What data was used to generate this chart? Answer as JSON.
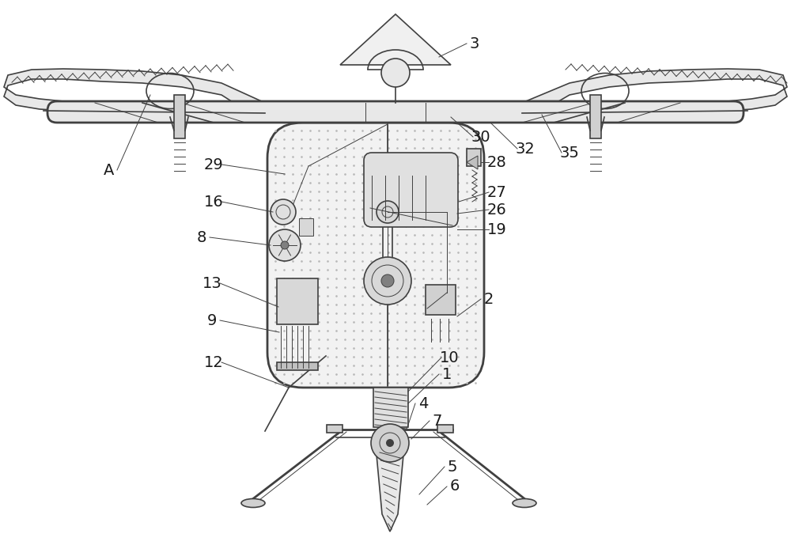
{
  "bg_color": "#ffffff",
  "line_color": "#404040",
  "light_line": "#808080",
  "fill_dot": "#d0d0d0",
  "hatch_color": "#606060",
  "label_fontsize": 14,
  "lw": 1.2,
  "lw_thick": 2.0,
  "lw_thin": 0.7
}
